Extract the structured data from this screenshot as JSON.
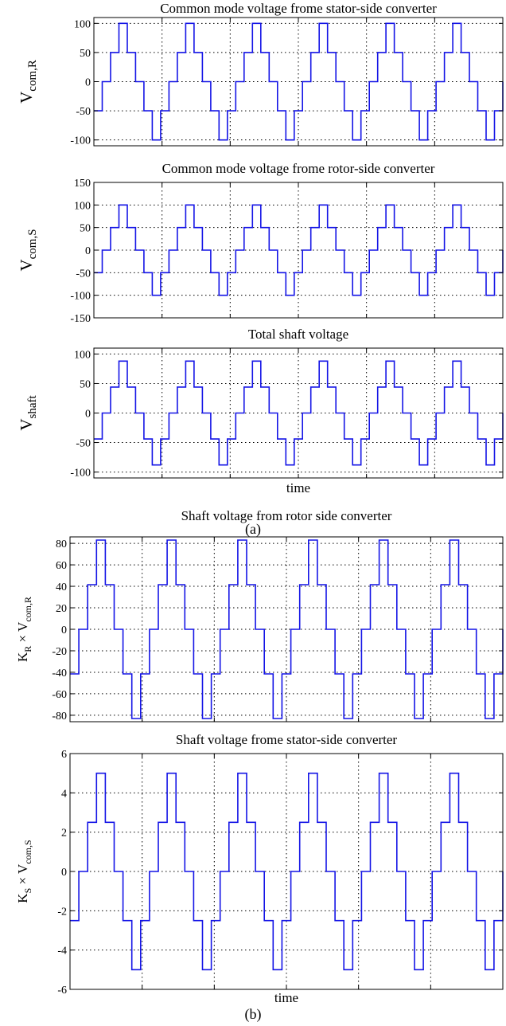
{
  "colors": {
    "series": "#1414e6",
    "axes": "#000000",
    "background": "#ffffff"
  },
  "captions": [
    "(a)",
    "(b)"
  ],
  "chart_data": [
    {
      "type": "line",
      "panel": "a",
      "title": "Common mode voltage frome stator-side converter",
      "xlabel": "",
      "ylabel": "V",
      "ylabel_sub": "com,R",
      "ylabel_style": "subscript",
      "ylim": [
        -110,
        110
      ],
      "yticks": [
        -100,
        -50,
        0,
        50,
        100
      ],
      "xlim": [
        0,
        6
      ],
      "xgrid": [
        1,
        2,
        3,
        4,
        5
      ],
      "grid": true,
      "series": [
        {
          "shape": "staircase",
          "cycles": 6,
          "amplitude": 100,
          "levels": [
            -100,
            -50,
            0,
            50,
            100
          ]
        }
      ]
    },
    {
      "type": "line",
      "panel": "a",
      "title": "Common mode voltage frome rotor-side converter",
      "xlabel": "",
      "ylabel": "V",
      "ylabel_sub": "com,S",
      "ylabel_style": "subscript",
      "ylim": [
        -150,
        150
      ],
      "yticks": [
        -150,
        -100,
        -50,
        0,
        50,
        100,
        150
      ],
      "xlim": [
        0,
        6
      ],
      "xgrid": [
        1,
        2,
        3,
        4,
        5
      ],
      "grid": true,
      "series": [
        {
          "shape": "staircase",
          "cycles": 6,
          "amplitude": 100,
          "levels": [
            -100,
            -50,
            0,
            50,
            100
          ]
        }
      ]
    },
    {
      "type": "line",
      "panel": "a",
      "title": "Total shaft voltage",
      "xlabel": "time",
      "ylabel": "V",
      "ylabel_sub": "shaft",
      "ylabel_style": "subscript",
      "ylim": [
        -110,
        110
      ],
      "yticks": [
        -100,
        -50,
        0,
        50,
        100
      ],
      "xlim": [
        0,
        6
      ],
      "xgrid": [
        1,
        2,
        3,
        4,
        5
      ],
      "grid": true,
      "series": [
        {
          "shape": "staircase",
          "cycles": 6,
          "amplitude": 88,
          "levels": [
            -88,
            -44,
            0,
            44,
            88
          ]
        }
      ]
    },
    {
      "type": "line",
      "panel": "b",
      "title": "Shaft voltage from rotor side converter",
      "xlabel": "",
      "ylabel": "K",
      "ylabel_sub": "R",
      "ylabel_post": " × V",
      "ylabel_sub2": "com,R",
      "ylabel_style": "small",
      "ylim": [
        -86,
        86
      ],
      "yticks": [
        -80,
        -60,
        -40,
        -20,
        0,
        20,
        40,
        60,
        80
      ],
      "xlim": [
        0,
        6
      ],
      "xgrid": [
        1,
        2,
        3,
        4,
        5
      ],
      "grid": true,
      "series": [
        {
          "shape": "staircase",
          "cycles": 6,
          "amplitude": 83,
          "levels": [
            -83,
            -41.5,
            0,
            41.5,
            83
          ]
        }
      ]
    },
    {
      "type": "line",
      "panel": "b",
      "title": "Shaft voltage frome stator-side converter",
      "xlabel": "time",
      "ylabel": "K",
      "ylabel_sub": "S",
      "ylabel_post": " × V",
      "ylabel_sub2": "com,S",
      "ylabel_style": "small",
      "ylim": [
        -6,
        6
      ],
      "yticks": [
        -6,
        -4,
        -2,
        0,
        2,
        4,
        6
      ],
      "xlim": [
        0,
        6
      ],
      "xgrid": [
        1,
        2,
        3,
        4,
        5
      ],
      "grid": true,
      "series": [
        {
          "shape": "staircase",
          "cycles": 6,
          "amplitude": 5,
          "levels": [
            -5,
            -2.5,
            0,
            2.5,
            5
          ]
        }
      ]
    }
  ]
}
